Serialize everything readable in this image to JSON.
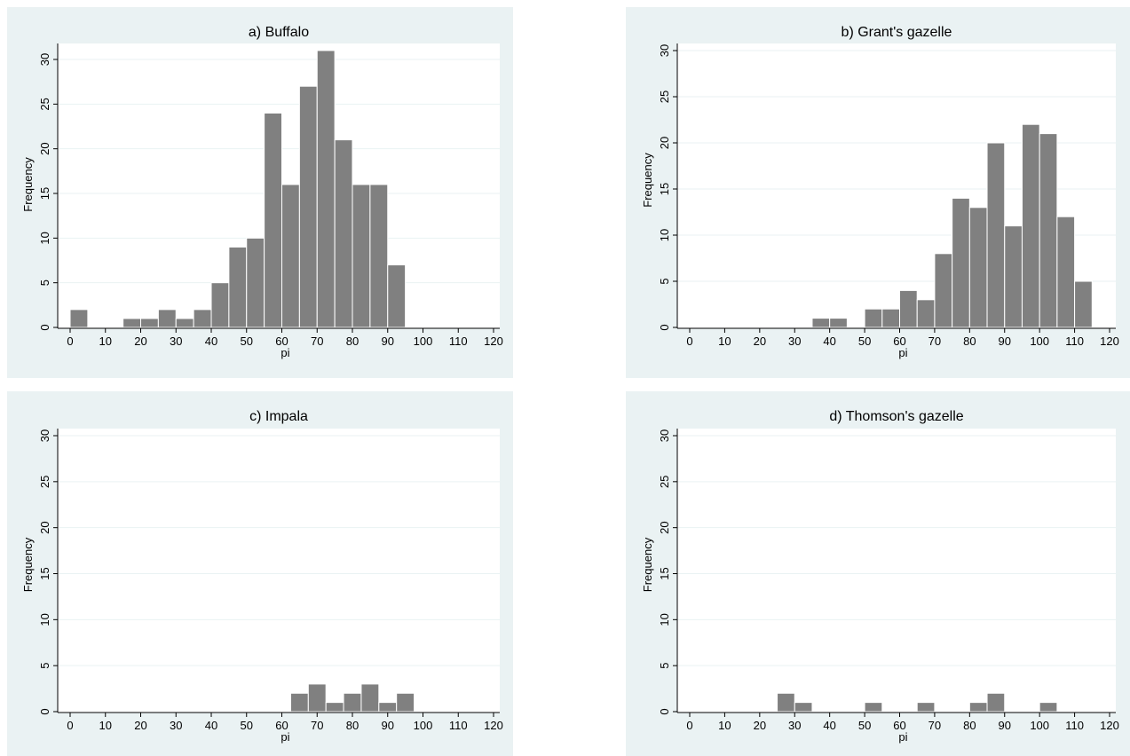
{
  "colors": {
    "panel_bg": "#eaf2f3",
    "plot_bg": "#ffffff",
    "bar_fill": "#808080",
    "bar_stroke": "#ffffff",
    "grid": "#eaf2f3",
    "axis": "#000000",
    "text": "#000000"
  },
  "chart_data": [
    {
      "type": "bar",
      "title": "a) Buffalo",
      "xlabel": "pi",
      "ylabel": "Frequency",
      "xlim": [
        0,
        120
      ],
      "ylim": [
        0,
        31
      ],
      "xticks": [
        0,
        10,
        20,
        30,
        40,
        50,
        60,
        70,
        80,
        90,
        100,
        110,
        120
      ],
      "yticks": [
        0,
        5,
        10,
        15,
        20,
        25,
        30
      ],
      "grid": true,
      "bin_width": 5,
      "bin_starts": [
        0,
        5,
        10,
        15,
        20,
        25,
        30,
        35,
        40,
        45,
        50,
        55,
        60,
        65,
        70,
        75,
        80,
        85,
        90
      ],
      "values": [
        2,
        0,
        0,
        1,
        1,
        2,
        1,
        2,
        5,
        9,
        10,
        24,
        16,
        27,
        31,
        21,
        16,
        16,
        7
      ]
    },
    {
      "type": "bar",
      "title": "b) Grant's gazelle",
      "xlabel": "pi",
      "ylabel": "Frequency",
      "xlim": [
        0,
        120
      ],
      "ylim": [
        0,
        30
      ],
      "xticks": [
        0,
        10,
        20,
        30,
        40,
        50,
        60,
        70,
        80,
        90,
        100,
        110,
        120
      ],
      "yticks": [
        0,
        5,
        10,
        15,
        20,
        25,
        30
      ],
      "grid": true,
      "bin_width": 5,
      "bin_starts": [
        35,
        40,
        45,
        50,
        55,
        60,
        65,
        70,
        75,
        80,
        85,
        90,
        95,
        100,
        105,
        110
      ],
      "values": [
        1,
        1,
        0,
        2,
        2,
        4,
        3,
        8,
        14,
        13,
        20,
        11,
        22,
        21,
        12,
        5
      ]
    },
    {
      "type": "bar",
      "title": "c) Impala",
      "xlabel": "pi",
      "ylabel": "Frequency",
      "xlim": [
        0,
        120
      ],
      "ylim": [
        0,
        30
      ],
      "xticks": [
        0,
        10,
        20,
        30,
        40,
        50,
        60,
        70,
        80,
        90,
        100,
        110,
        120
      ],
      "yticks": [
        0,
        5,
        10,
        15,
        20,
        25,
        30
      ],
      "grid": true,
      "bin_width": 5,
      "bin_starts": [
        62.5,
        67.5,
        72.5,
        77.5,
        82.5,
        87.5,
        92.5
      ],
      "values": [
        2,
        3,
        1,
        2,
        3,
        1,
        2
      ]
    },
    {
      "type": "bar",
      "title": "d) Thomson's gazelle",
      "xlabel": "pi",
      "ylabel": "Frequency",
      "xlim": [
        0,
        120
      ],
      "ylim": [
        0,
        30
      ],
      "xticks": [
        0,
        10,
        20,
        30,
        40,
        50,
        60,
        70,
        80,
        90,
        100,
        110,
        120
      ],
      "yticks": [
        0,
        5,
        10,
        15,
        20,
        25,
        30
      ],
      "grid": true,
      "bin_width": 5,
      "bin_starts": [
        25,
        30,
        50,
        65,
        80,
        85,
        100
      ],
      "values": [
        2,
        1,
        1,
        1,
        1,
        2,
        1
      ]
    }
  ]
}
